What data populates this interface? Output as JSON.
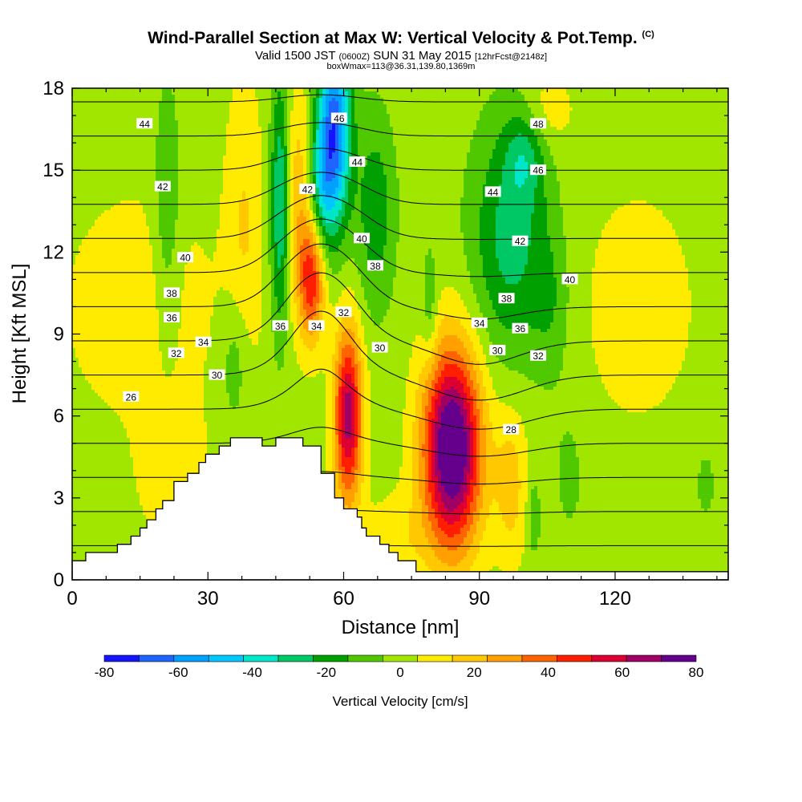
{
  "header": {
    "title": "Wind-Parallel Section at Max W: Vertical Velocity & Pot.Temp.",
    "title_mark": "(C)",
    "subtitle_valid": "Valid 1500 JST",
    "subtitle_utc": "(0600Z)",
    "subtitle_date": "SUN 31 May 2015",
    "subtitle_run": "[12hrFcst@2148z]",
    "subtitle2": "boxWmax=113@36.31,139.80,1369m"
  },
  "chart_data": {
    "type": "heatmap",
    "xlabel": "Distance [nm]",
    "ylabel": "Height [Kft MSL]",
    "xlim": [
      0,
      145
    ],
    "ylim": [
      0,
      18
    ],
    "x_ticks": [
      0,
      30,
      60,
      90,
      120
    ],
    "y_ticks": [
      0,
      3,
      6,
      9,
      12,
      15,
      18
    ],
    "colorbar": {
      "label": "Vertical Velocity [cm/s]",
      "tick_labels": [
        "-80",
        "-60",
        "-40",
        "-20",
        "0",
        "20",
        "40",
        "60",
        "80"
      ],
      "levels": [
        -80,
        -70,
        -60,
        -50,
        -40,
        -30,
        -20,
        -10,
        0,
        10,
        20,
        30,
        40,
        50,
        60,
        70,
        80
      ],
      "colors": [
        "#1414ff",
        "#1e64ff",
        "#00a0ff",
        "#00c8ff",
        "#00e6c8",
        "#00c864",
        "#00a000",
        "#50c800",
        "#a0e600",
        "#ffeb00",
        "#ffc800",
        "#ffa000",
        "#ff6400",
        "#ff1e00",
        "#dc0032",
        "#a00064",
        "#64008c"
      ]
    },
    "w_field": {
      "background": 5,
      "features": [
        {
          "x": 84,
          "y": 4.8,
          "sx": 4.5,
          "sy": 2.6,
          "w": 95
        },
        {
          "x": 61,
          "y": 6.0,
          "sx": 2.2,
          "sy": 2.3,
          "w": 70
        },
        {
          "x": 53,
          "y": 11.0,
          "sx": 2.0,
          "sy": 1.6,
          "w": 50
        },
        {
          "x": 50,
          "y": 14.0,
          "sx": 2.2,
          "sy": 3.0,
          "w": 22
        },
        {
          "x": 38,
          "y": 13.0,
          "sx": 3.0,
          "sy": 4.0,
          "w": 15
        },
        {
          "x": 97,
          "y": 3.5,
          "sx": 2.5,
          "sy": 2.0,
          "w": 20
        },
        {
          "x": 22,
          "y": 4.0,
          "sx": 5.0,
          "sy": 1.8,
          "w": 14
        },
        {
          "x": 15,
          "y": 10.0,
          "sx": 12.0,
          "sy": 3.0,
          "w": 12
        },
        {
          "x": 72,
          "y": 1.5,
          "sx": 5.0,
          "sy": 1.2,
          "w": 12
        },
        {
          "x": 105,
          "y": 17.2,
          "sx": 4.0,
          "sy": 1.0,
          "w": 12
        },
        {
          "x": 125,
          "y": 10.0,
          "sx": 12.0,
          "sy": 4.0,
          "w": 8
        },
        {
          "x": 58,
          "y": 16.5,
          "sx": 2.5,
          "sy": 2.5,
          "w": -70
        },
        {
          "x": 55,
          "y": 14.5,
          "sx": 2.0,
          "sy": 1.8,
          "w": -30
        },
        {
          "x": 46,
          "y": 13.8,
          "sx": 1.5,
          "sy": 3.2,
          "w": -38
        },
        {
          "x": 67,
          "y": 13.5,
          "sx": 3.0,
          "sy": 2.5,
          "w": -22
        },
        {
          "x": 97,
          "y": 12.5,
          "sx": 6.0,
          "sy": 3.0,
          "w": -30
        },
        {
          "x": 100,
          "y": 15.5,
          "sx": 3.0,
          "sy": 1.2,
          "w": -20
        },
        {
          "x": 21,
          "y": 13.0,
          "sx": 2.2,
          "sy": 3.5,
          "w": -16
        },
        {
          "x": 36,
          "y": 8.0,
          "sx": 2.2,
          "sy": 1.8,
          "w": -15
        },
        {
          "x": 79,
          "y": 10.0,
          "sx": 1.2,
          "sy": 1.5,
          "w": -15
        },
        {
          "x": 106,
          "y": 10.0,
          "sx": 3.0,
          "sy": 2.0,
          "w": -12
        },
        {
          "x": 102,
          "y": 2.3,
          "sx": 1.0,
          "sy": 1.0,
          "w": -14
        },
        {
          "x": 110,
          "y": 4.0,
          "sx": 3.0,
          "sy": 2.0,
          "w": -8
        },
        {
          "x": 140,
          "y": 3.5,
          "sx": 1.2,
          "sy": 0.7,
          "w": -15
        }
      ]
    },
    "terrain_profile": [
      [
        0,
        0.7
      ],
      [
        3,
        0.7
      ],
      [
        3,
        1.0
      ],
      [
        10,
        1.0
      ],
      [
        10,
        1.3
      ],
      [
        13,
        1.3
      ],
      [
        13,
        1.6
      ],
      [
        15,
        1.6
      ],
      [
        15,
        1.9
      ],
      [
        16.5,
        1.9
      ],
      [
        16.5,
        2.2
      ],
      [
        18.5,
        2.2
      ],
      [
        18.5,
        2.6
      ],
      [
        20,
        2.6
      ],
      [
        20,
        2.9
      ],
      [
        22.5,
        2.9
      ],
      [
        22.5,
        3.6
      ],
      [
        25.5,
        3.6
      ],
      [
        25.5,
        3.9
      ],
      [
        28,
        3.9
      ],
      [
        28,
        4.3
      ],
      [
        29.5,
        4.3
      ],
      [
        29.5,
        4.6
      ],
      [
        32.5,
        4.6
      ],
      [
        32.5,
        4.9
      ],
      [
        35,
        4.9
      ],
      [
        35,
        5.2
      ],
      [
        42,
        5.2
      ],
      [
        42,
        4.9
      ],
      [
        45,
        4.9
      ],
      [
        45,
        5.2
      ],
      [
        51,
        5.2
      ],
      [
        51,
        4.9
      ],
      [
        55,
        4.9
      ],
      [
        55,
        3.9
      ],
      [
        58,
        3.9
      ],
      [
        58,
        3.0
      ],
      [
        60,
        3.0
      ],
      [
        60,
        2.6
      ],
      [
        63,
        2.6
      ],
      [
        63,
        2.3
      ],
      [
        64,
        2.3
      ],
      [
        64,
        1.9
      ],
      [
        65,
        1.9
      ],
      [
        65,
        1.6
      ],
      [
        68,
        1.6
      ],
      [
        68,
        1.3
      ],
      [
        70,
        1.3
      ],
      [
        70,
        1.0
      ],
      [
        72,
        1.0
      ],
      [
        72,
        0.7
      ],
      [
        76,
        0.7
      ],
      [
        76,
        0.3
      ],
      [
        145,
        0.3
      ]
    ],
    "isentropes": {
      "levels": [
        24,
        26,
        28,
        30,
        32,
        34,
        36,
        38,
        40,
        42,
        44,
        46,
        48,
        50
      ],
      "labels": [
        {
          "text": "44",
          "x": 16,
          "y": 16.7
        },
        {
          "text": "42",
          "x": 20,
          "y": 14.4
        },
        {
          "text": "40",
          "x": 25,
          "y": 11.8
        },
        {
          "text": "38",
          "x": 22,
          "y": 10.5
        },
        {
          "text": "36",
          "x": 22,
          "y": 9.6
        },
        {
          "text": "34",
          "x": 29,
          "y": 8.7
        },
        {
          "text": "32",
          "x": 23,
          "y": 8.3
        },
        {
          "text": "30",
          "x": 32,
          "y": 7.5
        },
        {
          "text": "26",
          "x": 13,
          "y": 6.7
        },
        {
          "text": "36",
          "x": 46,
          "y": 9.3
        },
        {
          "text": "34",
          "x": 54,
          "y": 9.3
        },
        {
          "text": "32",
          "x": 60,
          "y": 9.8
        },
        {
          "text": "42",
          "x": 52,
          "y": 14.3
        },
        {
          "text": "46",
          "x": 59,
          "y": 16.9
        },
        {
          "text": "44",
          "x": 63,
          "y": 15.3
        },
        {
          "text": "40",
          "x": 64,
          "y": 12.5
        },
        {
          "text": "38",
          "x": 67,
          "y": 11.5
        },
        {
          "text": "30",
          "x": 68,
          "y": 8.5
        },
        {
          "text": "48",
          "x": 103,
          "y": 16.7
        },
        {
          "text": "46",
          "x": 103,
          "y": 15.0
        },
        {
          "text": "44",
          "x": 93,
          "y": 14.2
        },
        {
          "text": "42",
          "x": 99,
          "y": 12.4
        },
        {
          "text": "40",
          "x": 110,
          "y": 11.0
        },
        {
          "text": "38",
          "x": 96,
          "y": 10.3
        },
        {
          "text": "34",
          "x": 90,
          "y": 9.4
        },
        {
          "text": "36",
          "x": 99,
          "y": 9.2
        },
        {
          "text": "30",
          "x": 94,
          "y": 8.4
        },
        {
          "text": "32",
          "x": 103,
          "y": 8.2
        },
        {
          "text": "28",
          "x": 97,
          "y": 5.5
        }
      ]
    }
  }
}
